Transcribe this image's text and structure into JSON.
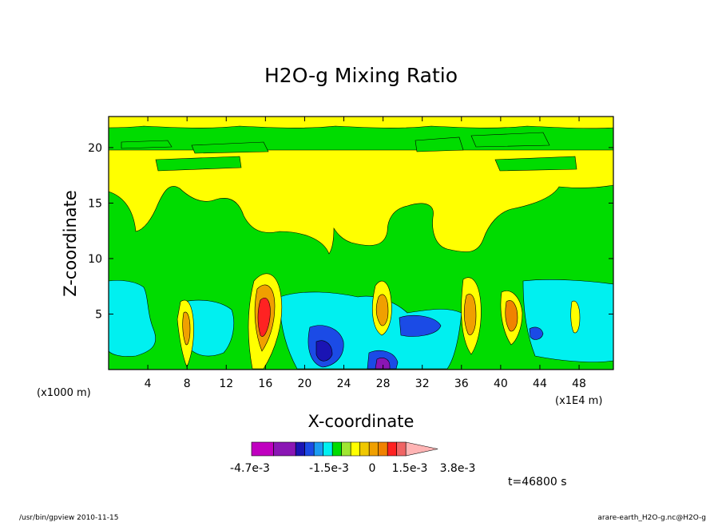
{
  "chart_data": {
    "type": "heatmap",
    "title": "H2O-g Mixing Ratio",
    "xlabel": "X-coordinate",
    "ylabel": "Z-coordinate",
    "x_unit_left": "(x1000 m)",
    "x_unit_right": "(x1E4 m)",
    "xlim": [
      0,
      51.5
    ],
    "ylim": [
      0,
      22.8
    ],
    "x_ticks": [
      4,
      8,
      12,
      16,
      20,
      24,
      28,
      32,
      36,
      40,
      44,
      48
    ],
    "y_ticks": [
      5,
      10,
      15,
      20
    ],
    "grid": false,
    "time_label": "t=46800 s",
    "colorbar": {
      "colors": [
        "#c000c0",
        "#8a16b4",
        "#1a14b4",
        "#1b4be6",
        "#1b9cf2",
        "#00f0f0",
        "#00dc00",
        "#a0e632",
        "#ffff00",
        "#f0c800",
        "#f0a000",
        "#f08200",
        "#ff2222",
        "#f06464",
        "#ffb4b4"
      ],
      "tick_labels": [
        "-4.7e-3",
        "-1.5e-3",
        "0",
        "1.5e-3",
        "3.8e-3"
      ]
    },
    "regions": {
      "background": {
        "level": "green",
        "color": "#00dc00"
      },
      "upper_dry_band": {
        "level": "yellow",
        "color": "#ffff00",
        "z_range": [
          14.5,
          21
        ]
      },
      "lower_moist_layer": {
        "level": "cyan",
        "color": "#00f0f0",
        "z_range": [
          0,
          8
        ]
      },
      "convective_cores": [
        {
          "x": 8,
          "z": 4,
          "color": "#f0a000"
        },
        {
          "x": 15.5,
          "z": 6,
          "color": "#ff2222"
        },
        {
          "x": 28,
          "z": 5.5,
          "color": "#f0a000"
        },
        {
          "x": 37,
          "z": 4.5,
          "color": "#f0a000"
        },
        {
          "x": 41,
          "z": 5,
          "color": "#f08200"
        }
      ]
    }
  },
  "footer": {
    "left": "/usr/bin/gpview  2010-11-15",
    "right": "arare-earth_H2O-g.nc@H2O-g"
  }
}
